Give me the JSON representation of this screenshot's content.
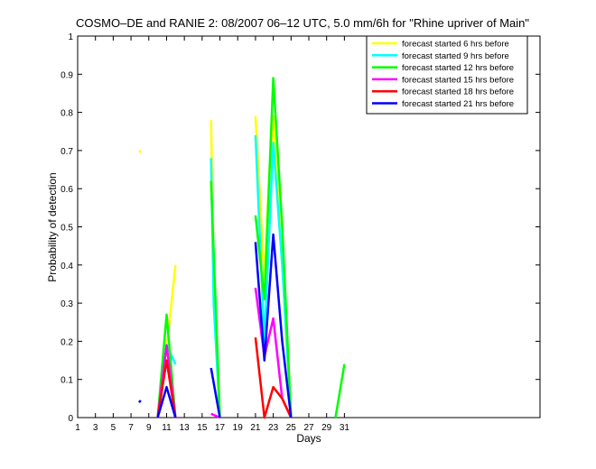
{
  "chart_data": {
    "type": "line",
    "title": "COSMO–DE and RANIE 2: 08/2007 06–12 UTC, 5.0 mm/6h for \"Rhine upriver of Main\"",
    "xlabel": "Days",
    "ylabel": "Probability of detection",
    "xlim": [
      1,
      53
    ],
    "ylim": [
      0,
      1
    ],
    "x_ticks": [
      1,
      3,
      5,
      7,
      9,
      11,
      13,
      15,
      17,
      19,
      21,
      23,
      25,
      27,
      29,
      31
    ],
    "y_ticks": [
      0,
      0.1,
      0.2,
      0.3,
      0.4,
      0.5,
      0.6,
      0.7,
      0.8,
      0.9,
      1
    ],
    "y_tick_labels": [
      "0",
      "0.1",
      "0.2",
      "0.3",
      "0.4",
      "0.5",
      "0.6",
      "0.7",
      "0.8",
      "0.9",
      "1"
    ],
    "grid": false,
    "legend_position": "top-right",
    "series": [
      {
        "name": "forecast started 6 hrs before",
        "color": "#ffff00",
        "segments": [
          [
            [
              7.9,
              0.695
            ],
            [
              8.1,
              0.7
            ]
          ],
          [
            [
              10,
              0
            ],
            [
              11,
              0.18
            ],
            [
              12,
              0.4
            ]
          ],
          [
            [
              16,
              0.78
            ],
            [
              16.3,
              0.4
            ],
            [
              17,
              0
            ]
          ],
          [
            [
              21,
              0.79
            ],
            [
              22,
              0.36
            ],
            [
              22.5,
              0.62
            ],
            [
              23,
              0.79
            ],
            [
              24,
              0.4
            ],
            [
              25,
              0
            ]
          ]
        ]
      },
      {
        "name": "forecast started 9 hrs before",
        "color": "#00ffff",
        "segments": [
          [
            [
              10,
              0
            ],
            [
              11,
              0.19
            ],
            [
              12,
              0.14
            ]
          ],
          [
            [
              16,
              0.68
            ],
            [
              16.3,
              0.3
            ],
            [
              17,
              0
            ]
          ],
          [
            [
              21,
              0.74
            ],
            [
              22,
              0.2
            ],
            [
              23,
              0.72
            ],
            [
              24,
              0.4
            ],
            [
              25,
              0
            ]
          ]
        ]
      },
      {
        "name": "forecast started 12 hrs before",
        "color": "#00ff00",
        "segments": [
          [
            [
              10,
              0
            ],
            [
              11,
              0.27
            ],
            [
              12,
              0
            ]
          ],
          [
            [
              16,
              0.62
            ],
            [
              17,
              0
            ]
          ],
          [
            [
              21,
              0.53
            ],
            [
              22,
              0.31
            ],
            [
              23,
              0.89
            ],
            [
              24,
              0.5
            ],
            [
              25,
              0
            ]
          ],
          [
            [
              30,
              0
            ],
            [
              31,
              0.14
            ]
          ]
        ]
      },
      {
        "name": "forecast started 15 hrs before",
        "color": "#ff00ff",
        "segments": [
          [
            [
              10,
              0
            ],
            [
              11,
              0.19
            ],
            [
              12,
              0
            ]
          ],
          [
            [
              16,
              0.01
            ],
            [
              17,
              0
            ]
          ],
          [
            [
              21,
              0.34
            ],
            [
              22,
              0.16
            ],
            [
              23,
              0.26
            ],
            [
              24,
              0.05
            ],
            [
              25,
              0
            ]
          ]
        ]
      },
      {
        "name": "forecast started 18 hrs before",
        "color": "#ff0000",
        "segments": [
          [
            [
              10,
              0
            ],
            [
              11,
              0.15
            ],
            [
              12,
              0
            ]
          ],
          [
            [
              21,
              0.21
            ],
            [
              22,
              0
            ],
            [
              23,
              0.08
            ],
            [
              24,
              0.05
            ],
            [
              25,
              0
            ]
          ]
        ]
      },
      {
        "name": "forecast started 21 hrs before",
        "color": "#0000ff",
        "segments": [
          [
            [
              7.9,
              0.04
            ],
            [
              8.1,
              0.045
            ]
          ],
          [
            [
              10,
              0
            ],
            [
              11,
              0.08
            ],
            [
              12,
              0
            ]
          ],
          [
            [
              16,
              0.13
            ],
            [
              17,
              0
            ]
          ],
          [
            [
              21,
              0.46
            ],
            [
              22,
              0.15
            ],
            [
              23,
              0.48
            ],
            [
              24,
              0.2
            ],
            [
              25,
              0
            ]
          ]
        ]
      }
    ]
  }
}
